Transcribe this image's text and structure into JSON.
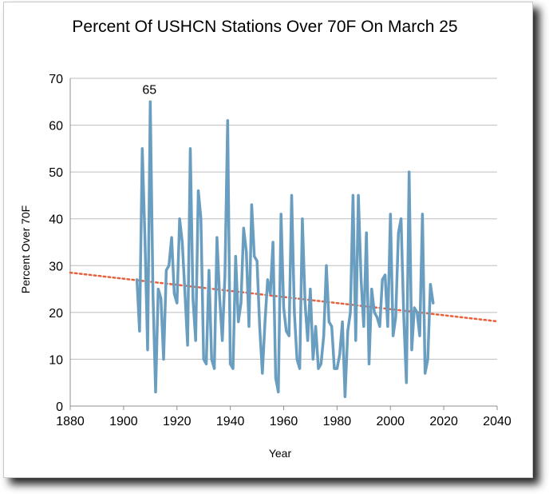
{
  "chart_data": {
    "type": "line",
    "title": "Percent Of USHCN Stations Over 70F On March 25",
    "xlabel": "Year",
    "ylabel": "Percent Over 70F",
    "xlim": [
      1880,
      2040
    ],
    "ylim": [
      0,
      70
    ],
    "x_ticks": [
      "1880",
      "1900",
      "1920",
      "1940",
      "1960",
      "1980",
      "2000",
      "2020",
      "2040"
    ],
    "y_ticks": [
      "0",
      "10",
      "20",
      "30",
      "40",
      "50",
      "60",
      "70"
    ],
    "grid": "horizontal",
    "annotation": {
      "text": "65",
      "x": 1910,
      "y": 65
    },
    "series": [
      {
        "color": "#6a9ec0",
        "x": [
          1905,
          1906,
          1907,
          1908,
          1909,
          1910,
          1911,
          1912,
          1913,
          1914,
          1915,
          1916,
          1917,
          1918,
          1919,
          1920,
          1921,
          1922,
          1923,
          1924,
          1925,
          1926,
          1927,
          1928,
          1929,
          1930,
          1931,
          1932,
          1933,
          1934,
          1935,
          1936,
          1937,
          1938,
          1939,
          1940,
          1941,
          1942,
          1943,
          1944,
          1945,
          1946,
          1947,
          1948,
          1949,
          1950,
          1951,
          1952,
          1953,
          1954,
          1955,
          1956,
          1957,
          1958,
          1959,
          1960,
          1961,
          1962,
          1963,
          1964,
          1965,
          1966,
          1967,
          1968,
          1969,
          1970,
          1971,
          1972,
          1973,
          1974,
          1975,
          1976,
          1977,
          1978,
          1979,
          1980,
          1981,
          1982,
          1983,
          1984,
          1985,
          1986,
          1987,
          1988,
          1989,
          1990,
          1991,
          1992,
          1993,
          1994,
          1995,
          1996,
          1997,
          1998,
          1999,
          2000,
          2001,
          2002,
          2003,
          2004,
          2005,
          2006,
          2007,
          2008,
          2009,
          2010,
          2011,
          2012,
          2013,
          2014,
          2015,
          2016
        ],
        "y": [
          27,
          16,
          55,
          36,
          12,
          65,
          24,
          3,
          25,
          23,
          10,
          29,
          30,
          36,
          24,
          22,
          40,
          35,
          24,
          13,
          55,
          23,
          14,
          46,
          40,
          10,
          9,
          29,
          10,
          8,
          36,
          23,
          14,
          28,
          61,
          9,
          8,
          32,
          18,
          22,
          38,
          33,
          17,
          43,
          32,
          31,
          17,
          7,
          18,
          27,
          24,
          35,
          6,
          3,
          41,
          21,
          16,
          15,
          45,
          20,
          10,
          8,
          40,
          22,
          14,
          25,
          10,
          17,
          8,
          9,
          15,
          30,
          18,
          17,
          8,
          8,
          11,
          18,
          2,
          16,
          20,
          45,
          14,
          45,
          27,
          17,
          37,
          9,
          25,
          20,
          19,
          17,
          27,
          28,
          17,
          41,
          15,
          19,
          37,
          40,
          19,
          5,
          50,
          12,
          21,
          20,
          15,
          41,
          7,
          10,
          26,
          22
        ]
      },
      {
        "type": "trendline",
        "style": "dotted",
        "color": "#e8603c",
        "x": [
          1880,
          2040
        ],
        "y": [
          28.5,
          18.1
        ]
      }
    ]
  }
}
